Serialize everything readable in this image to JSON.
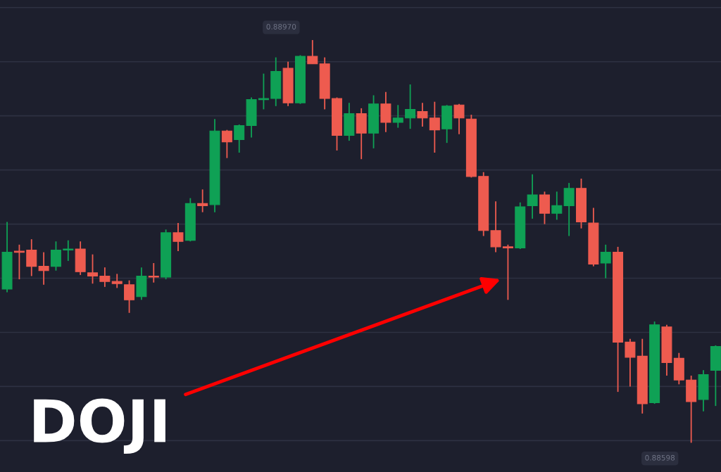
{
  "chart_data": {
    "type": "candlestick",
    "categories": [
      null,
      null,
      null,
      null,
      null,
      null,
      null,
      null,
      null,
      null,
      null,
      null,
      null,
      null,
      null,
      null,
      null,
      null,
      null,
      null,
      null,
      null,
      null,
      null,
      null,
      null,
      null,
      null,
      null,
      null,
      null,
      null,
      null,
      null,
      null,
      null,
      null,
      null,
      null,
      null,
      null,
      null,
      null,
      null,
      null,
      null,
      null,
      null,
      null,
      null,
      null,
      null,
      null,
      null,
      null,
      null,
      null,
      null,
      null
    ],
    "ohlc": [
      [
        0.8874,
        0.88802,
        0.88737,
        0.88774
      ],
      [
        0.88775,
        0.88781,
        0.88749,
        0.88774
      ],
      [
        0.88776,
        0.88786,
        0.88752,
        0.88761
      ],
      [
        0.88761,
        0.88774,
        0.88744,
        0.88757
      ],
      [
        0.88761,
        0.88784,
        0.88757,
        0.88776
      ],
      [
        0.88776,
        0.88785,
        0.88766,
        0.88777
      ],
      [
        0.88777,
        0.88784,
        0.88753,
        0.88756
      ],
      [
        0.88755,
        0.88772,
        0.88745,
        0.88752
      ],
      [
        0.88752,
        0.8876,
        0.88742,
        0.88747
      ],
      [
        0.88747,
        0.88754,
        0.88741,
        0.88745
      ],
      [
        0.88744,
        0.88748,
        0.88718,
        0.8873
      ],
      [
        0.88733,
        0.8876,
        0.8873,
        0.88752
      ],
      [
        0.88752,
        0.88764,
        0.88746,
        0.88751
      ],
      [
        0.88751,
        0.88795,
        0.88749,
        0.88792
      ],
      [
        0.88792,
        0.88801,
        0.88775,
        0.88784
      ],
      [
        0.88785,
        0.88824,
        0.88784,
        0.88819
      ],
      [
        0.88819,
        0.88832,
        0.88811,
        0.88817
      ],
      [
        0.88818,
        0.88897,
        0.88811,
        0.88886
      ],
      [
        0.88886,
        0.88887,
        0.88861,
        0.88876
      ],
      [
        0.88878,
        0.88892,
        0.88866,
        0.88891
      ],
      [
        0.88891,
        0.88917,
        0.8888,
        0.88915
      ],
      [
        0.88915,
        0.88939,
        0.88906,
        0.88916
      ],
      [
        0.88916,
        0.88954,
        0.88909,
        0.88941
      ],
      [
        0.88944,
        0.8895,
        0.88909,
        0.88912
      ],
      [
        0.88912,
        0.88956,
        0.88911,
        0.88955
      ],
      [
        0.88955,
        0.8897,
        0.88948,
        0.88948
      ],
      [
        0.88948,
        0.88954,
        0.88906,
        0.88916
      ],
      [
        0.88916,
        0.88917,
        0.88868,
        0.88882
      ],
      [
        0.88882,
        0.88912,
        0.88877,
        0.88902
      ],
      [
        0.88902,
        0.88907,
        0.8886,
        0.88884
      ],
      [
        0.88884,
        0.88919,
        0.8887,
        0.88911
      ],
      [
        0.88911,
        0.88922,
        0.88885,
        0.88894
      ],
      [
        0.88894,
        0.8891,
        0.88889,
        0.88898
      ],
      [
        0.88898,
        0.88929,
        0.88888,
        0.88906
      ],
      [
        0.88904,
        0.88912,
        0.8889,
        0.88898
      ],
      [
        0.88898,
        0.88913,
        0.88866,
        0.88887
      ],
      [
        0.88888,
        0.8891,
        0.88875,
        0.88909
      ],
      [
        0.8891,
        0.88911,
        0.88883,
        0.88898
      ],
      [
        0.88897,
        0.88901,
        0.88843,
        0.88844
      ],
      [
        0.88844,
        0.88848,
        0.88789,
        0.88794
      ],
      [
        0.88794,
        0.88821,
        0.88774,
        0.88779
      ],
      [
        0.88779,
        0.88781,
        0.8873,
        0.88778
      ],
      [
        0.88778,
        0.8882,
        0.88777,
        0.88816
      ],
      [
        0.88817,
        0.88846,
        0.88805,
        0.88827
      ],
      [
        0.88827,
        0.8883,
        0.888,
        0.8881
      ],
      [
        0.8881,
        0.8883,
        0.88804,
        0.88817
      ],
      [
        0.88817,
        0.88838,
        0.88789,
        0.88833
      ],
      [
        0.88833,
        0.88842,
        0.88796,
        0.88802
      ],
      [
        0.88801,
        0.88815,
        0.88761,
        0.88763
      ],
      [
        0.88764,
        0.88781,
        0.8875,
        0.88774
      ],
      [
        0.88774,
        0.88779,
        0.88645,
        0.88691
      ],
      [
        0.88691,
        0.88694,
        0.8865,
        0.88677
      ],
      [
        0.88678,
        0.88694,
        0.88625,
        0.88634
      ],
      [
        0.88635,
        0.8871,
        0.88634,
        0.88707
      ],
      [
        0.88705,
        0.88707,
        0.8866,
        0.88672
      ],
      [
        0.88676,
        0.88681,
        0.88652,
        0.88656
      ],
      [
        0.88656,
        0.8866,
        0.88598,
        0.88636
      ],
      [
        0.88638,
        0.88665,
        0.88627,
        0.88661
      ],
      [
        0.88665,
        0.88688,
        0.88632,
        0.88687
      ]
    ],
    "colors": [
      "#0fa155",
      "#ee5b4f",
      "#ee5b4f",
      "#ee5b4f",
      "#0fa155",
      "#0fa155",
      "#ee5b4f",
      "#ee5b4f",
      "#ee5b4f",
      "#ee5b4f",
      "#ee5b4f",
      "#0fa155",
      "#ee5b4f",
      "#0fa155",
      "#ee5b4f",
      "#0fa155",
      "#ee5b4f",
      "#0fa155",
      "#ee5b4f",
      "#0fa155",
      "#0fa155",
      "#0fa155",
      "#0fa155",
      "#ee5b4f",
      "#0fa155",
      "#ee5b4f",
      "#ee5b4f",
      "#ee5b4f",
      "#0fa155",
      "#ee5b4f",
      "#0fa155",
      "#ee5b4f",
      "#0fa155",
      "#0fa155",
      "#ee5b4f",
      "#ee5b4f",
      "#0fa155",
      "#ee5b4f",
      "#ee5b4f",
      "#ee5b4f",
      "#ee5b4f",
      "#ee5b4f",
      "#0fa155",
      "#0fa155",
      "#ee5b4f",
      "#0fa155",
      "#0fa155",
      "#ee5b4f",
      "#ee5b4f",
      "#0fa155",
      "#ee5b4f",
      "#ee5b4f",
      "#ee5b4f",
      "#0fa155",
      "#ee5b4f",
      "#ee5b4f",
      "#ee5b4f",
      "#0fa155",
      "#0fa155"
    ],
    "ylim": [
      0.88571,
      0.89007
    ],
    "yticks": [
      {
        "value": 0.886,
        "label": null
      },
      {
        "value": 0.8865,
        "label": null
      },
      {
        "value": 0.887,
        "label": null
      },
      {
        "value": 0.8875,
        "label": null
      },
      {
        "value": 0.888,
        "label": null
      },
      {
        "value": 0.8885,
        "label": null
      },
      {
        "value": 0.889,
        "label": null
      },
      {
        "value": 0.8895,
        "label": null
      },
      {
        "value": 0.89,
        "label": null
      }
    ],
    "grid": "y",
    "annotations": [
      "0.88970",
      "0.88598",
      {
        "text": "DOJI",
        "y": 0.88749
      }
    ]
  }
}
